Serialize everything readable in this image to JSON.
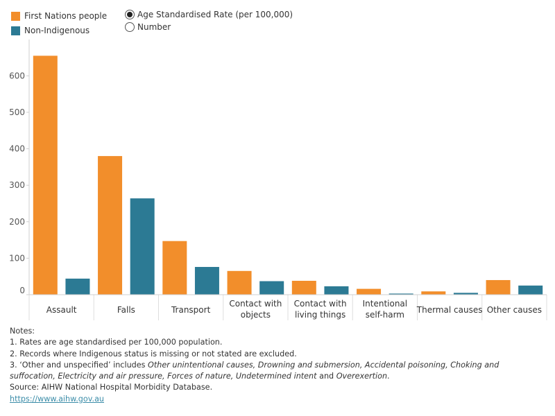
{
  "legend": {
    "items": [
      {
        "label": "First Nations people",
        "color": "#F28E2B"
      },
      {
        "label": "Non-Indigenous",
        "color": "#2C7A94"
      }
    ]
  },
  "controls": {
    "options": [
      {
        "label": "Age Standardised Rate (per 100,000)",
        "selected": true
      },
      {
        "label": "Number",
        "selected": false
      }
    ]
  },
  "chart_data": {
    "type": "bar",
    "categories": [
      [
        "Assault"
      ],
      [
        "Falls"
      ],
      [
        "Transport"
      ],
      [
        "Contact with",
        "objects"
      ],
      [
        "Contact with",
        "living things"
      ],
      [
        "Intentional",
        "self-harm"
      ],
      [
        "Thermal causes"
      ],
      [
        "Other causes"
      ]
    ],
    "series": [
      {
        "name": "First Nations people",
        "color": "#F28E2B",
        "values": [
          655,
          380,
          147,
          65,
          38,
          16,
          9,
          40
        ]
      },
      {
        "name": "Non-Indigenous",
        "color": "#2C7A94",
        "values": [
          44,
          264,
          76,
          37,
          23,
          3,
          5,
          25
        ]
      }
    ],
    "yticks": [
      0,
      100,
      200,
      300,
      400,
      500,
      600
    ],
    "ylim": [
      0,
      690
    ],
    "grid": false
  },
  "notes": {
    "heading": "Notes:",
    "note1": "1. Rates are age standardised per 100,000 population.",
    "note2": "2. Records where Indigenous status is missing or not stated are excluded.",
    "note3_prefix": "3. ‘Other and unspecified’ includes ",
    "note3_italic1": "Other unintentional causes, Drowning and submersion, Accidental poisoning, Choking and",
    "note3_italic2": "suffocation, Electricity and air pressure, Forces of nature, Undetermined intent",
    "note3_and": " and ",
    "note3_italic3": "Overexertion",
    "note3_end": ".",
    "source": "Source: AIHW National Hospital Morbidity Database.",
    "link": "https://www.aihw.gov.au"
  }
}
